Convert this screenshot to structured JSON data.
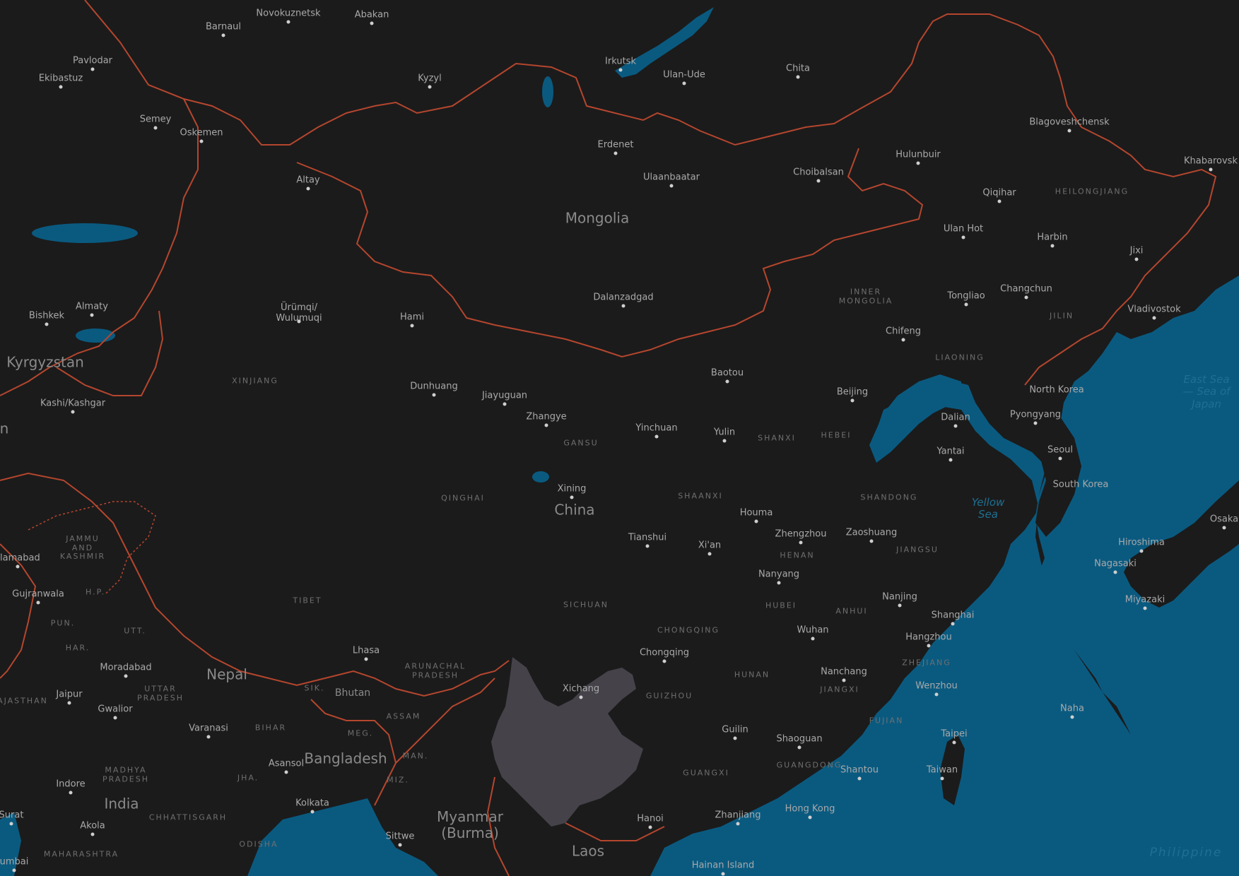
{
  "colors": {
    "land": "#1b1b1b",
    "water": "#0a5a80",
    "border": "#b5462e",
    "highlight_region": "#45424a",
    "text": "#a9a9a9"
  },
  "map": {
    "countries": [
      "Mongolia",
      "China",
      "Kyrgyzstan",
      "Nepal",
      "Bhutan",
      "Bangladesh",
      "India",
      "Myanmar (Burma)",
      "Laos",
      "North Korea",
      "South Korea"
    ],
    "cities": [
      "Novokuznetsk",
      "Abakan",
      "Barnaul",
      "Pavlodar",
      "Ekibastuz",
      "Kyzyl",
      "Irkutsk",
      "Ulan-Ude",
      "Chita",
      "Semey",
      "Oskemen",
      "Erdenet",
      "Blagoveshchensk",
      "Hulunbuir",
      "Khabarovsk",
      "Ulaanbaatar",
      "Choibalsan",
      "Altay",
      "Qiqihar",
      "Ulan Hot",
      "Harbin",
      "Jixi",
      "Dalanzadgad",
      "Tongliao",
      "Changchun",
      "Bishkek",
      "Almaty",
      "Ürümqi/\nWulumuqi",
      "Hami",
      "Vladivostok",
      "Chifeng",
      "Kashi/Kashgar",
      "Dunhuang",
      "Jiayuguan",
      "Baotou",
      "Beijing",
      "Zhangye",
      "Yinchuan",
      "Yulin",
      "Dalian",
      "Pyongyang",
      "Yantai",
      "Seoul",
      "Xining",
      "Houma",
      "Zhengzhou",
      "Zaoshuang",
      "Tianshui",
      "Xi'an",
      "slamabad",
      "Gujranwala",
      "Nanyang",
      "Nanjing",
      "Shanghai",
      "Hiroshima",
      "Nagasaki",
      "Miyazaki",
      "Osaka",
      "Wuhan",
      "Hangzhou",
      "Lhasa",
      "Moradabad",
      "Chongqing",
      "Nanchang",
      "Wenzhou",
      "Xichang",
      "Jaipur",
      "Gwalior",
      "Naha",
      "Varanasi",
      "Guilin",
      "Taipei",
      "Shaoguan",
      "Asansol",
      "Shantou",
      "Taiwan",
      "Indore",
      "Hong Kong",
      "Zhanjiang",
      "Surat",
      "Kolkata",
      "Akola",
      "Hanoi",
      "Sittwe",
      "Hainan Island",
      "umbai"
    ],
    "regions": [
      "HEILONGJIANG",
      "INNER\nMONGOLIA",
      "JILIN",
      "LIAONING",
      "XINJIANG",
      "GANSU",
      "SHANXI",
      "HEBEI",
      "SHANDONG",
      "QINGHAI",
      "SHAANXI",
      "JAMMU\nAND\nKASHMIR",
      "H.P.",
      "HENAN",
      "JIANGSU",
      "SICHUAN",
      "HUBEI",
      "ANHUI",
      "TIBET",
      "PUN.",
      "UTT.",
      "HAR.",
      "CHONGQING",
      "ZHEJIANG",
      "HUNAN",
      "ARUNACHAL\nPRADESH",
      "JIANGXI",
      "GUIZHOU",
      "SIK.",
      "UTTAR\nPRADESH",
      "AJASTHAN",
      "FUJIAN",
      "ASSAM",
      "BIHAR",
      "MEG.",
      "MAN.",
      "GUANGDONG",
      "GUANGXI",
      "MADHYA\nPRADESH",
      "JHA.",
      "MIZ.",
      "CHHATTISGARH",
      "ODISHA",
      "MAHARASHTRA"
    ],
    "water_labels": [
      "East Sea\n— Sea of\nJapan",
      "Yellow\nSea",
      "Philippine"
    ],
    "partial_label": "n"
  }
}
